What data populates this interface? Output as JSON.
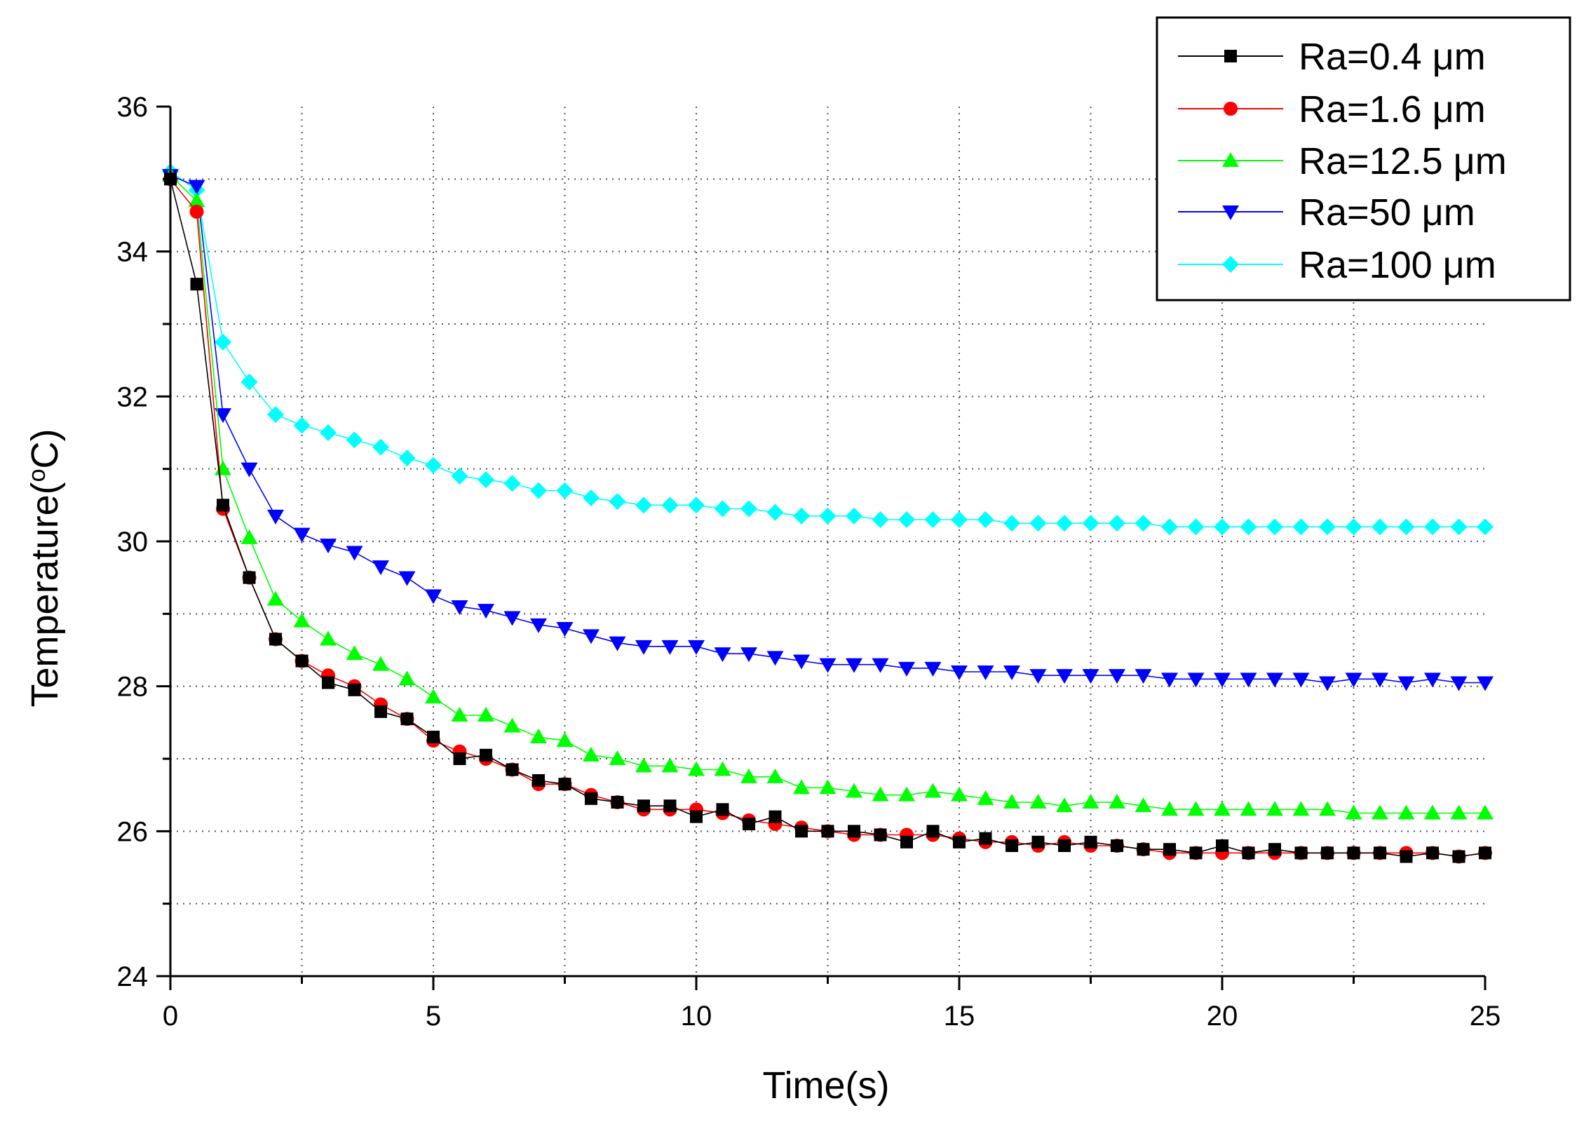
{
  "chart_data": {
    "type": "line",
    "xlabel": "Time(s)",
    "ylabel_main": "Temperature(",
    "ylabel_sup": "o",
    "ylabel_tail": "C)",
    "xlim": [
      0,
      25
    ],
    "ylim": [
      24,
      36
    ],
    "xticks": [
      0,
      5,
      10,
      15,
      20,
      25
    ],
    "yticks": [
      24,
      26,
      28,
      30,
      32,
      34,
      36
    ],
    "grid": true,
    "legend_position": "top-right",
    "series": [
      {
        "name": "Ra=0.4 μm",
        "color": "#000000",
        "marker": "square",
        "x": [
          0,
          0.5,
          1,
          1.5,
          2,
          2.5,
          3,
          3.5,
          4,
          4.5,
          5,
          5.5,
          6,
          6.5,
          7,
          7.5,
          8,
          8.5,
          9,
          9.5,
          10,
          10.5,
          11,
          11.5,
          12,
          12.5,
          13,
          13.5,
          14,
          14.5,
          15,
          15.5,
          16,
          16.5,
          17,
          17.5,
          18,
          18.5,
          19,
          19.5,
          20,
          20.5,
          21,
          21.5,
          22,
          22.5,
          23,
          23.5,
          24,
          24.5,
          25
        ],
        "y": [
          35.0,
          33.55,
          30.5,
          29.5,
          28.65,
          28.35,
          28.05,
          27.95,
          27.65,
          27.55,
          27.3,
          27.0,
          27.05,
          26.85,
          26.7,
          26.65,
          26.45,
          26.4,
          26.35,
          26.35,
          26.2,
          26.3,
          26.1,
          26.2,
          26.0,
          26.0,
          26.0,
          25.95,
          25.85,
          26.0,
          25.85,
          25.9,
          25.8,
          25.85,
          25.8,
          25.85,
          25.8,
          25.75,
          25.75,
          25.7,
          25.8,
          25.7,
          25.75,
          25.7,
          25.7,
          25.7,
          25.7,
          25.65,
          25.7,
          25.65,
          25.7
        ]
      },
      {
        "name": "Ra=1.6 μm",
        "color": "#ff0000",
        "marker": "circle",
        "x": [
          0,
          0.5,
          1,
          1.5,
          2,
          2.5,
          3,
          3.5,
          4,
          4.5,
          5,
          5.5,
          6,
          6.5,
          7,
          7.5,
          8,
          8.5,
          9,
          9.5,
          10,
          10.5,
          11,
          11.5,
          12,
          12.5,
          13,
          13.5,
          14,
          14.5,
          15,
          15.5,
          16,
          16.5,
          17,
          17.5,
          18,
          18.5,
          19,
          19.5,
          20,
          20.5,
          21,
          21.5,
          22,
          22.5,
          23,
          23.5,
          24,
          24.5,
          25
        ],
        "y": [
          35.0,
          34.55,
          30.45,
          29.5,
          28.65,
          28.35,
          28.15,
          28.0,
          27.75,
          27.55,
          27.25,
          27.1,
          27.0,
          26.85,
          26.65,
          26.65,
          26.5,
          26.4,
          26.3,
          26.3,
          26.3,
          26.25,
          26.15,
          26.1,
          26.05,
          26.0,
          25.95,
          25.95,
          25.95,
          25.95,
          25.9,
          25.85,
          25.85,
          25.8,
          25.85,
          25.8,
          25.8,
          25.75,
          25.7,
          25.7,
          25.7,
          25.7,
          25.7,
          25.7,
          25.7,
          25.7,
          25.7,
          25.7,
          25.7,
          25.65,
          25.7
        ]
      },
      {
        "name": "Ra=12.5 μm",
        "color": "#00ff00",
        "marker": "triangle-up",
        "x": [
          0,
          0.5,
          1,
          1.5,
          2,
          2.5,
          3,
          3.5,
          4,
          4.5,
          5,
          5.5,
          6,
          6.5,
          7,
          7.5,
          8,
          8.5,
          9,
          9.5,
          10,
          10.5,
          11,
          11.5,
          12,
          12.5,
          13,
          13.5,
          14,
          14.5,
          15,
          15.5,
          16,
          16.5,
          17,
          17.5,
          18,
          18.5,
          19,
          19.5,
          20,
          20.5,
          21,
          21.5,
          22,
          22.5,
          23,
          23.5,
          24,
          24.5,
          25
        ],
        "y": [
          35.05,
          34.7,
          31.0,
          30.05,
          29.2,
          28.9,
          28.65,
          28.45,
          28.3,
          28.1,
          27.85,
          27.6,
          27.6,
          27.45,
          27.3,
          27.25,
          27.05,
          27.0,
          26.9,
          26.9,
          26.85,
          26.85,
          26.75,
          26.75,
          26.6,
          26.6,
          26.55,
          26.5,
          26.5,
          26.55,
          26.5,
          26.45,
          26.4,
          26.4,
          26.35,
          26.4,
          26.4,
          26.35,
          26.3,
          26.3,
          26.3,
          26.3,
          26.3,
          26.3,
          26.3,
          26.25,
          26.25,
          26.25,
          26.25,
          26.25,
          26.25
        ]
      },
      {
        "name": "Ra=50 μm",
        "color": "#0000ff",
        "marker": "triangle-down",
        "x": [
          0,
          0.5,
          1,
          1.5,
          2,
          2.5,
          3,
          3.5,
          4,
          4.5,
          5,
          5.5,
          6,
          6.5,
          7,
          7.5,
          8,
          8.5,
          9,
          9.5,
          10,
          10.5,
          11,
          11.5,
          12,
          12.5,
          13,
          13.5,
          14,
          14.5,
          15,
          15.5,
          16,
          16.5,
          17,
          17.5,
          18,
          18.5,
          19,
          19.5,
          20,
          20.5,
          21,
          21.5,
          22,
          22.5,
          23,
          23.5,
          24,
          24.5,
          25
        ],
        "y": [
          35.05,
          34.9,
          31.75,
          31.0,
          30.35,
          30.1,
          29.95,
          29.85,
          29.65,
          29.5,
          29.25,
          29.1,
          29.05,
          28.95,
          28.85,
          28.8,
          28.7,
          28.6,
          28.55,
          28.55,
          28.55,
          28.45,
          28.45,
          28.4,
          28.35,
          28.3,
          28.3,
          28.3,
          28.25,
          28.25,
          28.2,
          28.2,
          28.2,
          28.15,
          28.15,
          28.15,
          28.15,
          28.15,
          28.1,
          28.1,
          28.1,
          28.1,
          28.1,
          28.1,
          28.05,
          28.1,
          28.1,
          28.05,
          28.1,
          28.05,
          28.05
        ]
      },
      {
        "name": "Ra=100 μm",
        "color": "#00ffff",
        "marker": "diamond",
        "x": [
          0,
          0.5,
          1,
          1.5,
          2,
          2.5,
          3,
          3.5,
          4,
          4.5,
          5,
          5.5,
          6,
          6.5,
          7,
          7.5,
          8,
          8.5,
          9,
          9.5,
          10,
          10.5,
          11,
          11.5,
          12,
          12.5,
          13,
          13.5,
          14,
          14.5,
          15,
          15.5,
          16,
          16.5,
          17,
          17.5,
          18,
          18.5,
          19,
          19.5,
          20,
          20.5,
          21,
          21.5,
          22,
          22.5,
          23,
          23.5,
          24,
          24.5,
          25
        ],
        "y": [
          35.1,
          34.85,
          32.75,
          32.2,
          31.75,
          31.6,
          31.5,
          31.4,
          31.3,
          31.15,
          31.05,
          30.9,
          30.85,
          30.8,
          30.7,
          30.7,
          30.6,
          30.55,
          30.5,
          30.5,
          30.5,
          30.45,
          30.45,
          30.4,
          30.35,
          30.35,
          30.35,
          30.3,
          30.3,
          30.3,
          30.3,
          30.3,
          30.25,
          30.25,
          30.25,
          30.25,
          30.25,
          30.25,
          30.2,
          30.2,
          30.2,
          30.2,
          30.2,
          30.2,
          30.2,
          30.2,
          30.2,
          30.2,
          30.2,
          30.2,
          30.2
        ]
      }
    ]
  }
}
